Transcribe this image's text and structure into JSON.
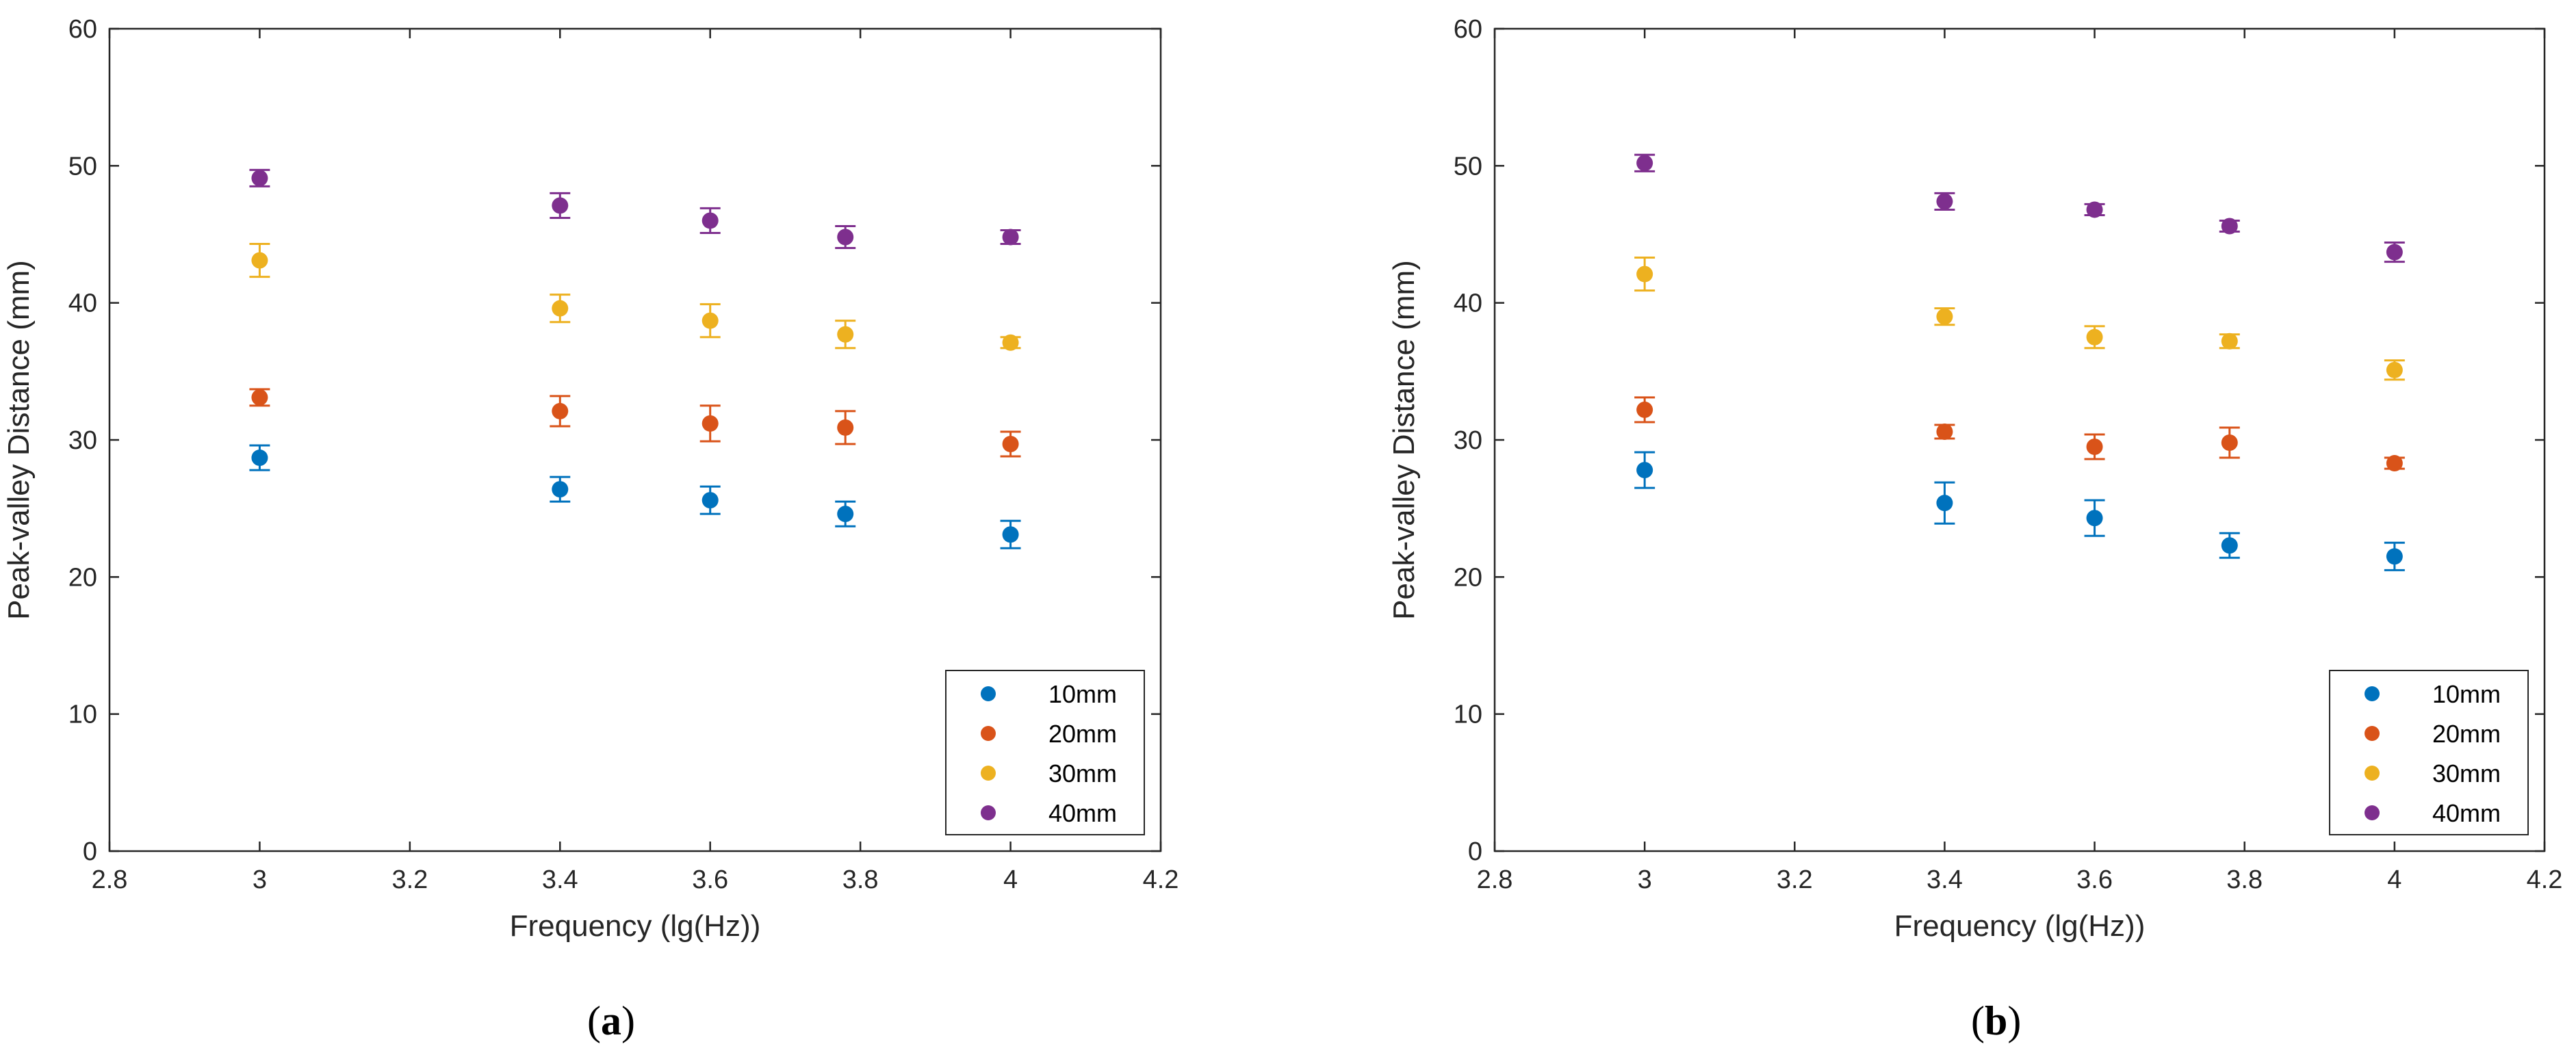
{
  "chart_data": [
    {
      "type": "scatter",
      "panel_label_open": "(",
      "panel_label": "a",
      "panel_label_close": ")",
      "title": "",
      "xlabel": "Frequency (lg(Hz))",
      "ylabel": "Peak-valley Distance (mm)",
      "xlim": [
        2.8,
        4.2
      ],
      "ylim": [
        0,
        60
      ],
      "xticks": [
        2.8,
        3,
        3.2,
        3.4,
        3.6,
        3.8,
        4,
        4.2
      ],
      "xtick_labels": [
        "2.8",
        "3",
        "3.2",
        "3.4",
        "3.6",
        "3.8",
        "4",
        "4.2"
      ],
      "yticks": [
        0,
        10,
        20,
        30,
        40,
        50,
        60
      ],
      "ytick_labels": [
        "0",
        "10",
        "20",
        "30",
        "40",
        "50",
        "60"
      ],
      "grid": false,
      "legend_position": "bottom-right",
      "x": [
        3,
        3.4,
        3.6,
        3.78,
        4
      ],
      "series": [
        {
          "name": "10mm",
          "color": "#0072BD",
          "values": [
            28.7,
            26.4,
            25.6,
            24.6,
            23.1
          ],
          "errors": [
            0.9,
            0.9,
            1.0,
            0.9,
            1.0
          ]
        },
        {
          "name": "20mm",
          "color": "#D95319",
          "values": [
            33.1,
            32.1,
            31.2,
            30.9,
            29.7
          ],
          "errors": [
            0.6,
            1.1,
            1.3,
            1.2,
            0.9
          ]
        },
        {
          "name": "30mm",
          "color": "#EDB120",
          "values": [
            43.1,
            39.6,
            38.7,
            37.7,
            37.1
          ],
          "errors": [
            1.2,
            1.0,
            1.2,
            1.0,
            0.4
          ]
        },
        {
          "name": "40mm",
          "color": "#7E2F8E",
          "values": [
            49.1,
            47.1,
            46.0,
            44.8,
            44.8
          ],
          "errors": [
            0.6,
            0.9,
            0.9,
            0.8,
            0.5
          ]
        }
      ]
    },
    {
      "type": "scatter",
      "panel_label_open": "(",
      "panel_label": "b",
      "panel_label_close": ")",
      "title": "",
      "xlabel": "Frequency (lg(Hz))",
      "ylabel": "Peak-valley Distance (mm)",
      "xlim": [
        2.8,
        4.2
      ],
      "ylim": [
        0,
        60
      ],
      "xticks": [
        2.8,
        3,
        3.2,
        3.4,
        3.6,
        3.8,
        4,
        4.2
      ],
      "xtick_labels": [
        "2.8",
        "3",
        "3.2",
        "3.4",
        "3.6",
        "3.8",
        "4",
        "4.2"
      ],
      "yticks": [
        0,
        10,
        20,
        30,
        40,
        50,
        60
      ],
      "ytick_labels": [
        "0",
        "10",
        "20",
        "30",
        "40",
        "50",
        "60"
      ],
      "grid": false,
      "legend_position": "bottom-right",
      "x": [
        3,
        3.4,
        3.6,
        3.78,
        4
      ],
      "series": [
        {
          "name": "10mm",
          "color": "#0072BD",
          "values": [
            27.8,
            25.4,
            24.3,
            22.3,
            21.5
          ],
          "errors": [
            1.3,
            1.5,
            1.3,
            0.9,
            1.0
          ]
        },
        {
          "name": "20mm",
          "color": "#D95319",
          "values": [
            32.2,
            30.6,
            29.5,
            29.8,
            28.3
          ],
          "errors": [
            0.9,
            0.5,
            0.9,
            1.1,
            0.4
          ]
        },
        {
          "name": "30mm",
          "color": "#EDB120",
          "values": [
            42.1,
            39.0,
            37.5,
            37.2,
            35.1
          ],
          "errors": [
            1.2,
            0.6,
            0.8,
            0.5,
            0.7
          ]
        },
        {
          "name": "40mm",
          "color": "#7E2F8E",
          "values": [
            50.2,
            47.4,
            46.8,
            45.6,
            43.7
          ],
          "errors": [
            0.6,
            0.6,
            0.4,
            0.4,
            0.7
          ]
        }
      ]
    }
  ]
}
